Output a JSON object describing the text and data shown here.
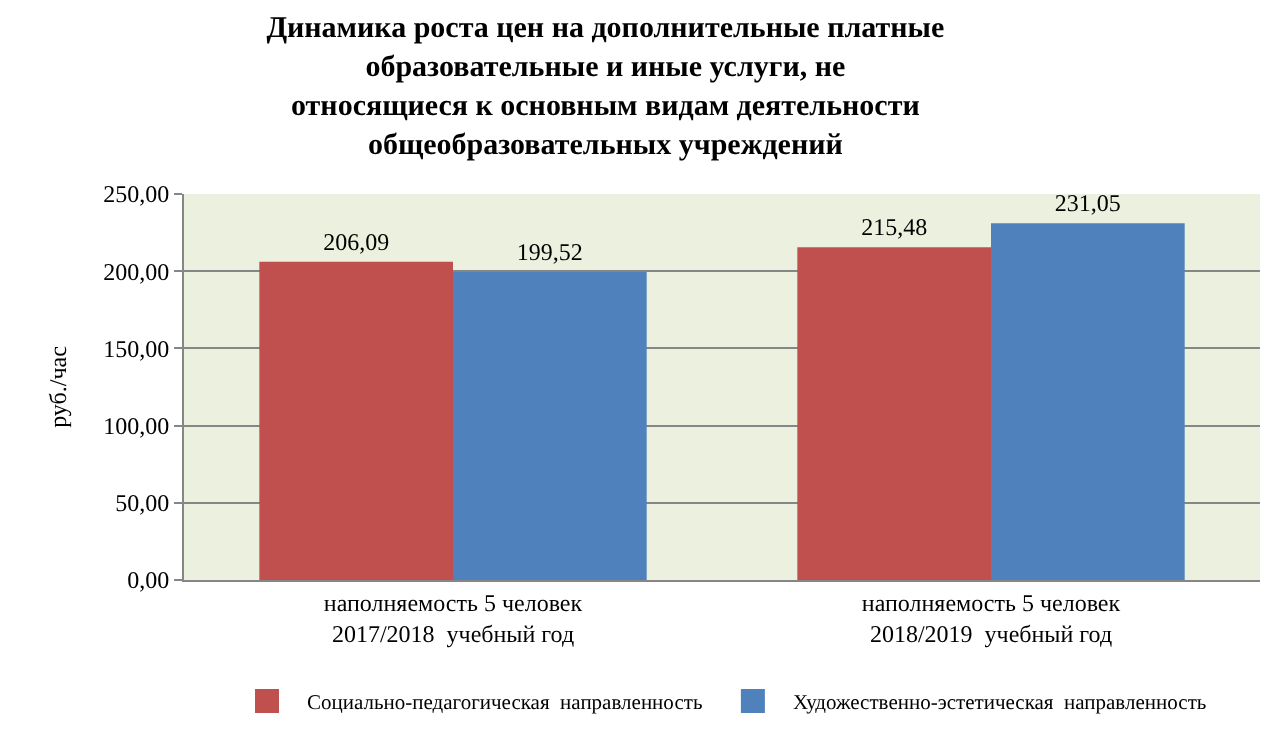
{
  "chart_data": {
    "type": "bar",
    "title": "Динамика роста цен на дополнительные платные\nобразовательные и иные услуги, не\nотносящиеся к основным видам деятельности\nобщеобразовательных учреждений",
    "ylabel": "руб./час",
    "categories": [
      "наполняемость 5 человек\n2017/2018  учебный год",
      "наполняемость 5 человек\n2018/2019  учебный год"
    ],
    "series": [
      {
        "name": "Социально-педагогическая  направленность",
        "color": "#c0504d",
        "values": [
          206.09,
          215.48
        ],
        "value_labels": [
          "206,09",
          "215,48"
        ]
      },
      {
        "name": "Художественно-эстетическая  направленность",
        "color": "#4f81bd",
        "values": [
          199.52,
          231.05
        ],
        "value_labels": [
          "199,52",
          "231,05"
        ]
      }
    ],
    "ylim": [
      0,
      250
    ],
    "yticks": [
      {
        "value": 0,
        "label": "0,00"
      },
      {
        "value": 50,
        "label": "50,00"
      },
      {
        "value": 100,
        "label": "100,00"
      },
      {
        "value": 150,
        "label": "150,00"
      },
      {
        "value": 200,
        "label": "200,00"
      },
      {
        "value": 250,
        "label": "250,00"
      }
    ],
    "grid": "y",
    "legend": "bottom"
  }
}
